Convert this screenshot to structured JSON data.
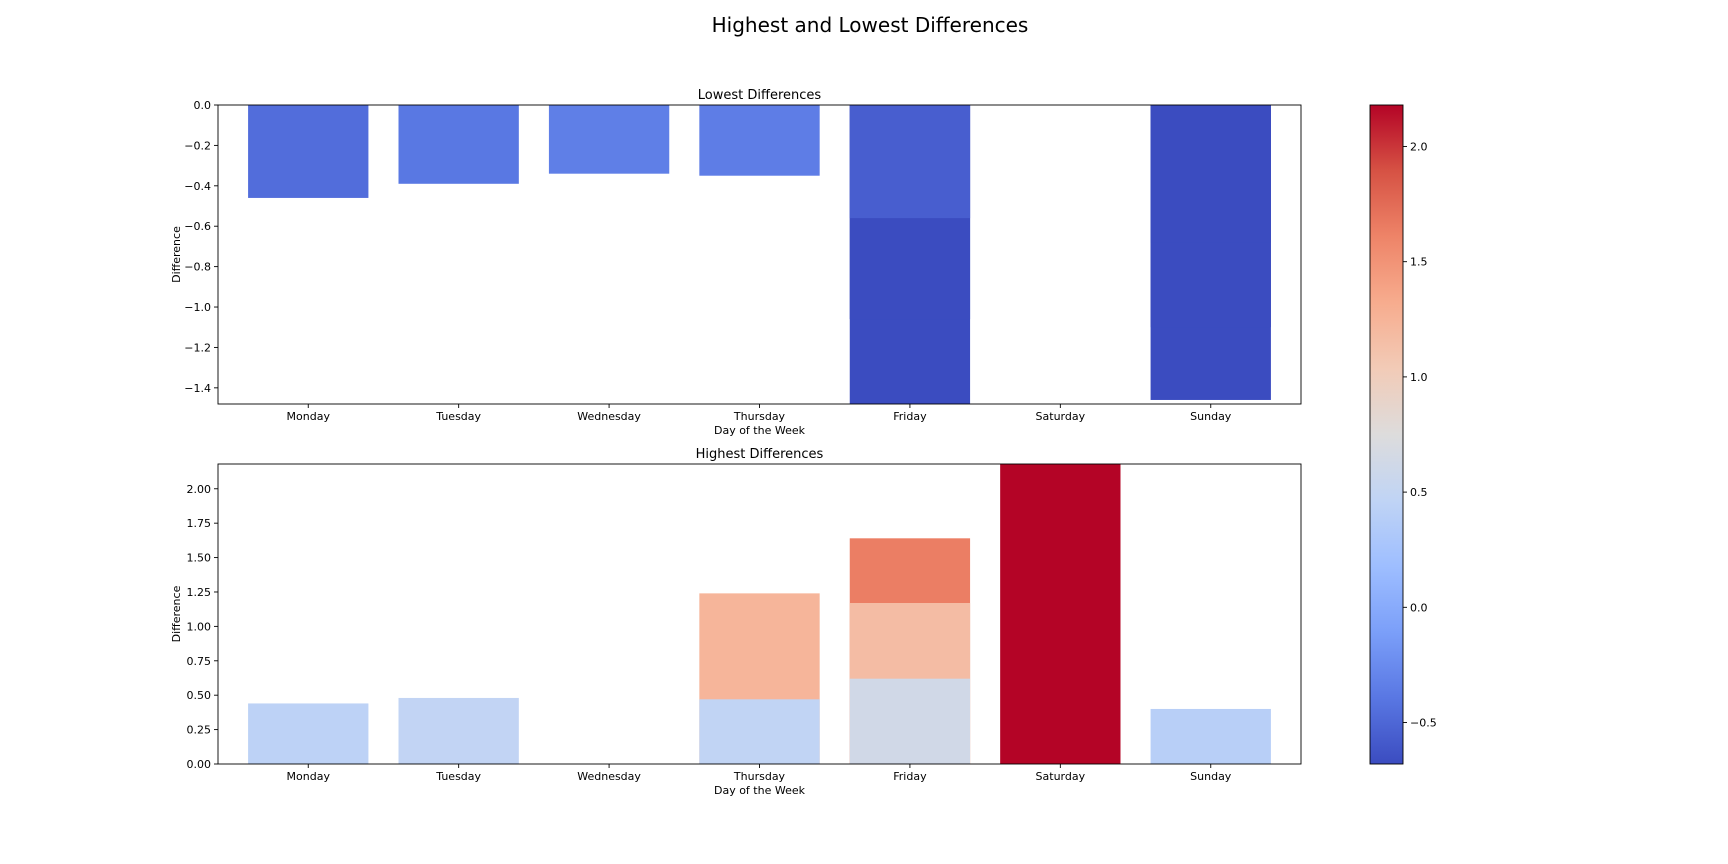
{
  "figure": {
    "title": "Highest and Lowest Differences"
  },
  "chart_data": [
    {
      "type": "bar",
      "title": "Lowest Differences",
      "xlabel": "Day of the Week",
      "ylabel": "Difference",
      "categories": [
        "Monday",
        "Tuesday",
        "Wednesday",
        "Thursday",
        "Friday",
        "Saturday",
        "Sunday"
      ],
      "ylim": [
        -1.48,
        0.0
      ],
      "yticks": [
        0.0,
        -0.2,
        -0.4,
        -0.6,
        -0.8,
        -1.0,
        -1.2,
        -1.4
      ],
      "ytick_labels": [
        "0.0",
        "−0.2",
        "−0.4",
        "−0.6",
        "−0.8",
        "−1.0",
        "−1.2",
        "−1.4"
      ],
      "grid": false,
      "bars": [
        {
          "category": "Monday",
          "value": -0.46
        },
        {
          "category": "Tuesday",
          "value": -0.39
        },
        {
          "category": "Wednesday",
          "value": -0.34
        },
        {
          "category": "Thursday",
          "value": -0.35
        },
        {
          "category": "Friday",
          "value": -1.48
        },
        {
          "category": "Friday",
          "value": -1.06
        },
        {
          "category": "Friday",
          "value": -0.56
        },
        {
          "category": "Sunday",
          "value": -1.46
        },
        {
          "category": "Sunday",
          "value": -1.1
        },
        {
          "category": "Sunday",
          "value": -0.68
        }
      ]
    },
    {
      "type": "bar",
      "title": "Highest Differences",
      "xlabel": "Day of the Week",
      "ylabel": "Difference",
      "categories": [
        "Monday",
        "Tuesday",
        "Wednesday",
        "Thursday",
        "Friday",
        "Saturday",
        "Sunday"
      ],
      "ylim": [
        0.0,
        2.18
      ],
      "yticks": [
        0.0,
        0.25,
        0.5,
        0.75,
        1.0,
        1.25,
        1.5,
        1.75,
        2.0
      ],
      "ytick_labels": [
        "0.00",
        "0.25",
        "0.50",
        "0.75",
        "1.00",
        "1.25",
        "1.50",
        "1.75",
        "2.00"
      ],
      "grid": false,
      "bars": [
        {
          "category": "Monday",
          "value": 0.44
        },
        {
          "category": "Tuesday",
          "value": 0.48
        },
        {
          "category": "Thursday",
          "value": 1.24
        },
        {
          "category": "Thursday",
          "value": 0.47
        },
        {
          "category": "Friday",
          "value": 1.64
        },
        {
          "category": "Friday",
          "value": 1.17
        },
        {
          "category": "Friday",
          "value": 0.62
        },
        {
          "category": "Saturday",
          "value": 2.18
        },
        {
          "category": "Sunday",
          "value": 0.4
        }
      ]
    }
  ],
  "colorbar": {
    "cmap": "coolwarm",
    "vmin": -0.68,
    "vmax": 2.18,
    "ticks": [
      -0.5,
      0.0,
      0.5,
      1.0,
      1.5,
      2.0
    ],
    "tick_labels": [
      "−0.5",
      "0.0",
      "0.5",
      "1.0",
      "1.5",
      "2.0"
    ],
    "colors": [
      "#3b4cc0",
      "#5977e3",
      "#7b9ff9",
      "#9ebeff",
      "#c0d4f5",
      "#dddcdc",
      "#f2cbb7",
      "#f7ac8e",
      "#ee8468",
      "#d65244",
      "#b40426"
    ]
  }
}
